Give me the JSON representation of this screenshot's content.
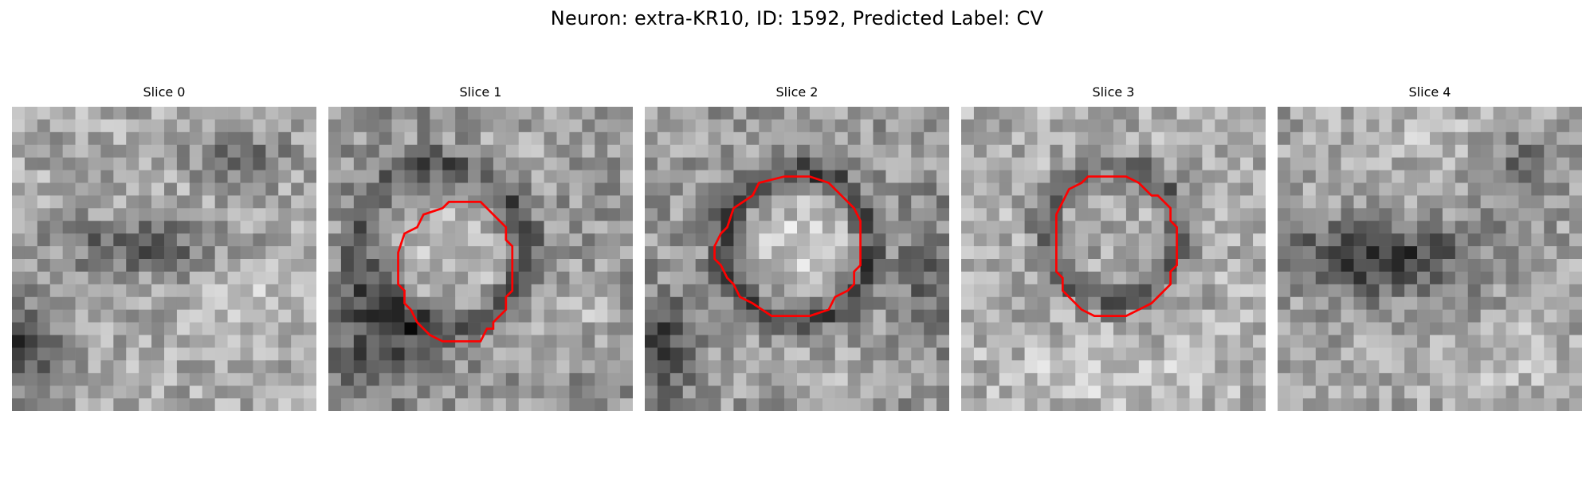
{
  "figure": {
    "suptitle": "Neuron: extra-KR10, ID: 1592, Predicted Label: CV",
    "contour_color": "#ff0000",
    "colormap": "gray"
  },
  "panels": [
    {
      "title": "Slice 0",
      "has_contour": false
    },
    {
      "title": "Slice 1",
      "has_contour": true
    },
    {
      "title": "Slice 2",
      "has_contour": true
    },
    {
      "title": "Slice 3",
      "has_contour": true
    },
    {
      "title": "Slice 4",
      "has_contour": false
    }
  ]
}
